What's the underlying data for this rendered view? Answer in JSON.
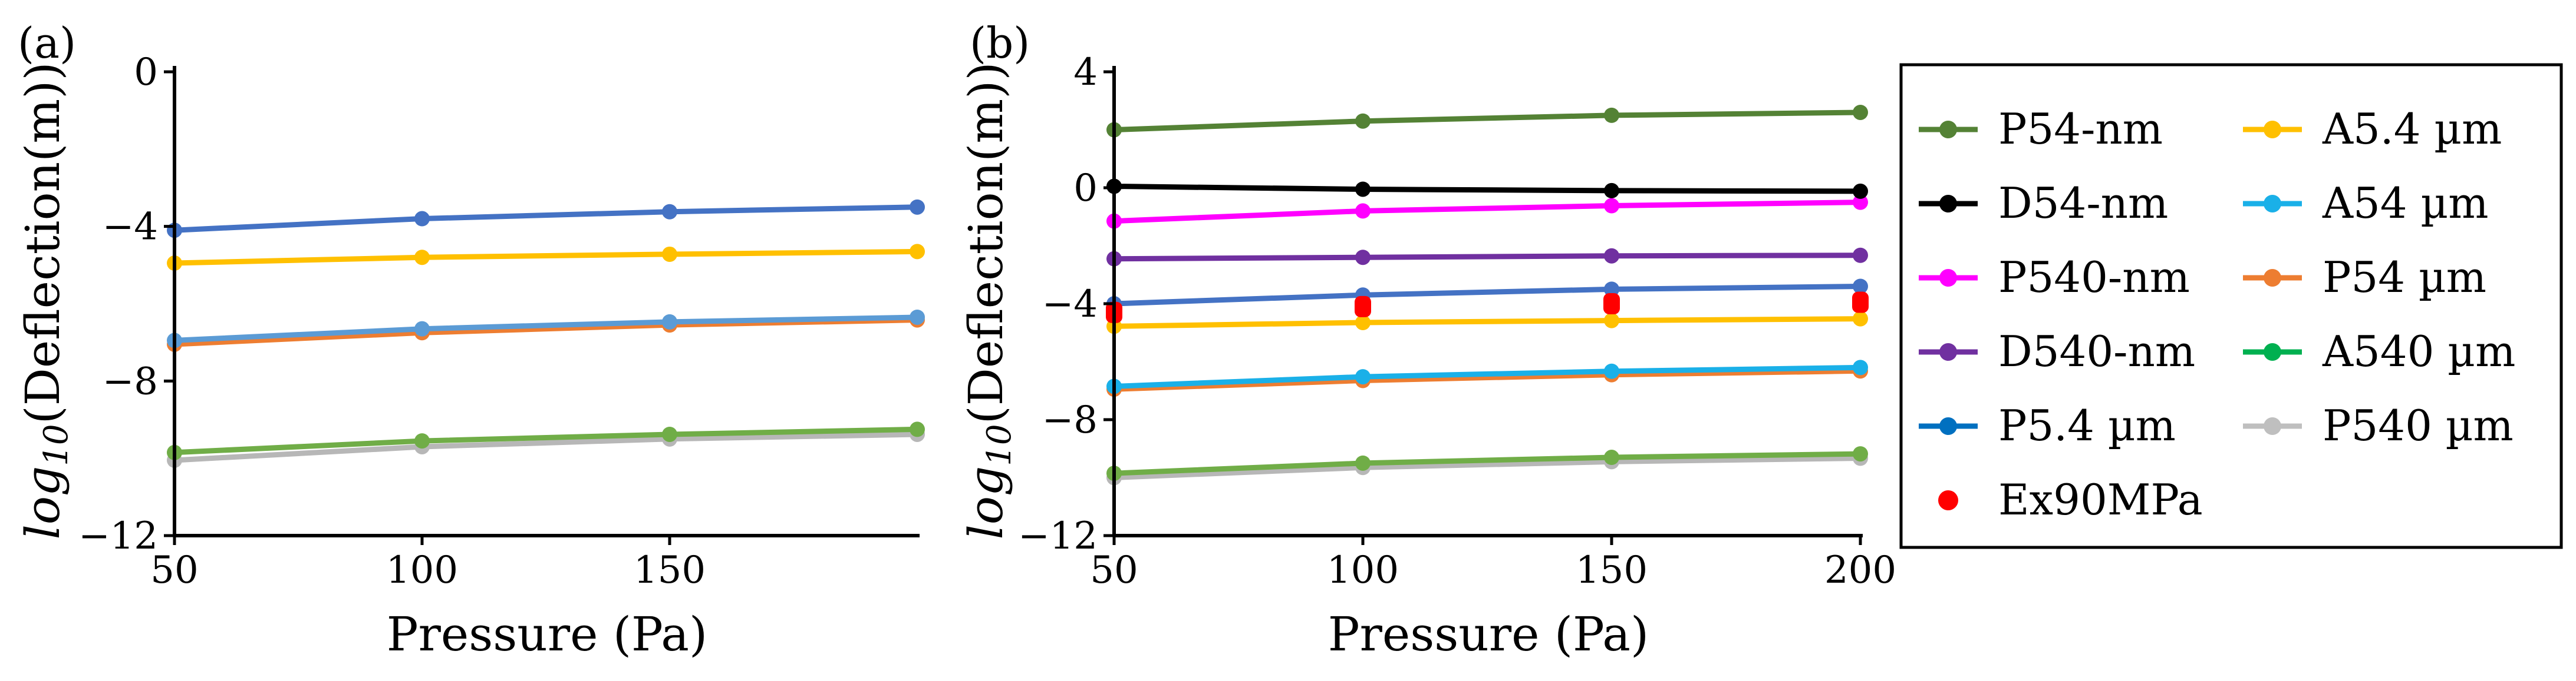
{
  "chart_data": [
    {
      "type": "line",
      "panel_label": "(a)",
      "xlabel": "Pressure (Pa)",
      "ylabel_main": "log",
      "ylabel_sub": "10",
      "ylabel_rest": "(Deflection(m))",
      "x": [
        50,
        100,
        150,
        200
      ],
      "xlim": [
        50,
        200
      ],
      "ylim": [
        -12,
        0
      ],
      "xticks": [
        {
          "v": 50,
          "label": "50"
        },
        {
          "v": 100,
          "label": "100"
        },
        {
          "v": 150,
          "label": "150"
        }
      ],
      "yticks": [
        {
          "v": 0,
          "label": "0"
        },
        {
          "v": -4,
          "label": "−4"
        },
        {
          "v": -8,
          "label": "−8"
        },
        {
          "v": -12,
          "label": "−12"
        }
      ],
      "series": [
        {
          "name": "P540 µm",
          "color": "#b7b7b7",
          "values": [
            -10.05,
            -9.7,
            -9.5,
            -9.38
          ]
        },
        {
          "name": "A540 µm",
          "color": "#70ad47",
          "values": [
            -9.85,
            -9.55,
            -9.38,
            -9.25
          ]
        },
        {
          "name": "P54 µm",
          "color": "#ed7d31",
          "values": [
            -7.05,
            -6.75,
            -6.55,
            -6.42
          ]
        },
        {
          "name": "A54 µm",
          "color": "#5b9bd5",
          "values": [
            -6.95,
            -6.65,
            -6.47,
            -6.35
          ]
        },
        {
          "name": "A5.4 µm",
          "color": "#ffc000",
          "values": [
            -4.95,
            -4.8,
            -4.72,
            -4.65
          ]
        },
        {
          "name": "P5.4 µm",
          "color": "#4472c4",
          "values": [
            -4.1,
            -3.8,
            -3.62,
            -3.5
          ]
        }
      ]
    },
    {
      "type": "line",
      "panel_label": "(b)",
      "xlabel": "Pressure (Pa)",
      "ylabel_main": "log",
      "ylabel_sub": "10",
      "ylabel_rest": "(Deflection(m))",
      "x": [
        50,
        100,
        150,
        200
      ],
      "xlim": [
        50,
        200
      ],
      "ylim": [
        -12,
        4
      ],
      "xticks": [
        {
          "v": 50,
          "label": "50"
        },
        {
          "v": 100,
          "label": "100"
        },
        {
          "v": 150,
          "label": "150"
        },
        {
          "v": 200,
          "label": "200"
        }
      ],
      "yticks": [
        {
          "v": 4,
          "label": "4"
        },
        {
          "v": 0,
          "label": "0"
        },
        {
          "v": -4,
          "label": "−4"
        },
        {
          "v": -8,
          "label": "−8"
        },
        {
          "v": -12,
          "label": "−12"
        }
      ],
      "series": [
        {
          "name": "P540 µm",
          "color": "#b7b7b7",
          "values": [
            -10.0,
            -9.65,
            -9.45,
            -9.33
          ]
        },
        {
          "name": "A540 µm",
          "color": "#70ad47",
          "values": [
            -9.85,
            -9.5,
            -9.3,
            -9.18
          ]
        },
        {
          "name": "P54 µm",
          "color": "#ed7d31",
          "values": [
            -6.95,
            -6.65,
            -6.45,
            -6.32
          ]
        },
        {
          "name": "A54 µm",
          "color": "#1ab0e8",
          "values": [
            -6.85,
            -6.52,
            -6.33,
            -6.2
          ]
        },
        {
          "name": "A5.4 µm",
          "color": "#ffc000",
          "values": [
            -4.78,
            -4.65,
            -4.58,
            -4.52
          ]
        },
        {
          "name": "P5.4 µm",
          "color": "#4472c4",
          "values": [
            -4.0,
            -3.7,
            -3.5,
            -3.4
          ]
        },
        {
          "name": "D540-nm",
          "color": "#7030a0",
          "values": [
            -2.45,
            -2.4,
            -2.35,
            -2.33
          ]
        },
        {
          "name": "P540-nm",
          "color": "#ff00ff",
          "values": [
            -1.15,
            -0.8,
            -0.62,
            -0.5
          ]
        },
        {
          "name": "D54-nm",
          "color": "#000000",
          "values": [
            0.05,
            -0.05,
            -0.1,
            -0.12
          ]
        },
        {
          "name": "P54-nm",
          "color": "#548235",
          "values": [
            2.0,
            2.3,
            2.5,
            2.6
          ]
        }
      ],
      "markers": [
        {
          "name": "Ex90MPa",
          "color": "#ff0000",
          "values": [
            -4.3,
            -4.1,
            -4.0,
            -3.95
          ]
        }
      ]
    }
  ],
  "legend": {
    "items": [
      {
        "label": "P54-nm",
        "color": "#548235",
        "kind": "line"
      },
      {
        "label": "A5.4 µm",
        "color": "#ffc000",
        "kind": "line"
      },
      {
        "label": "D54-nm",
        "color": "#000000",
        "kind": "line"
      },
      {
        "label": "A54 µm",
        "color": "#1ab0e8",
        "kind": "line"
      },
      {
        "label": "P540-nm",
        "color": "#ff00ff",
        "kind": "line"
      },
      {
        "label": "P54 µm",
        "color": "#ed7d31",
        "kind": "line"
      },
      {
        "label": "D540-nm",
        "color": "#7030a0",
        "kind": "line"
      },
      {
        "label": "A540 µm",
        "color": "#00b050",
        "kind": "line"
      },
      {
        "label": "P5.4 µm",
        "color": "#0070c0",
        "kind": "line"
      },
      {
        "label": "P540 µm",
        "color": "#bfbfbf",
        "kind": "line"
      },
      {
        "label": "Ex90MPa",
        "color": "#ff0000",
        "kind": "marker"
      }
    ]
  }
}
